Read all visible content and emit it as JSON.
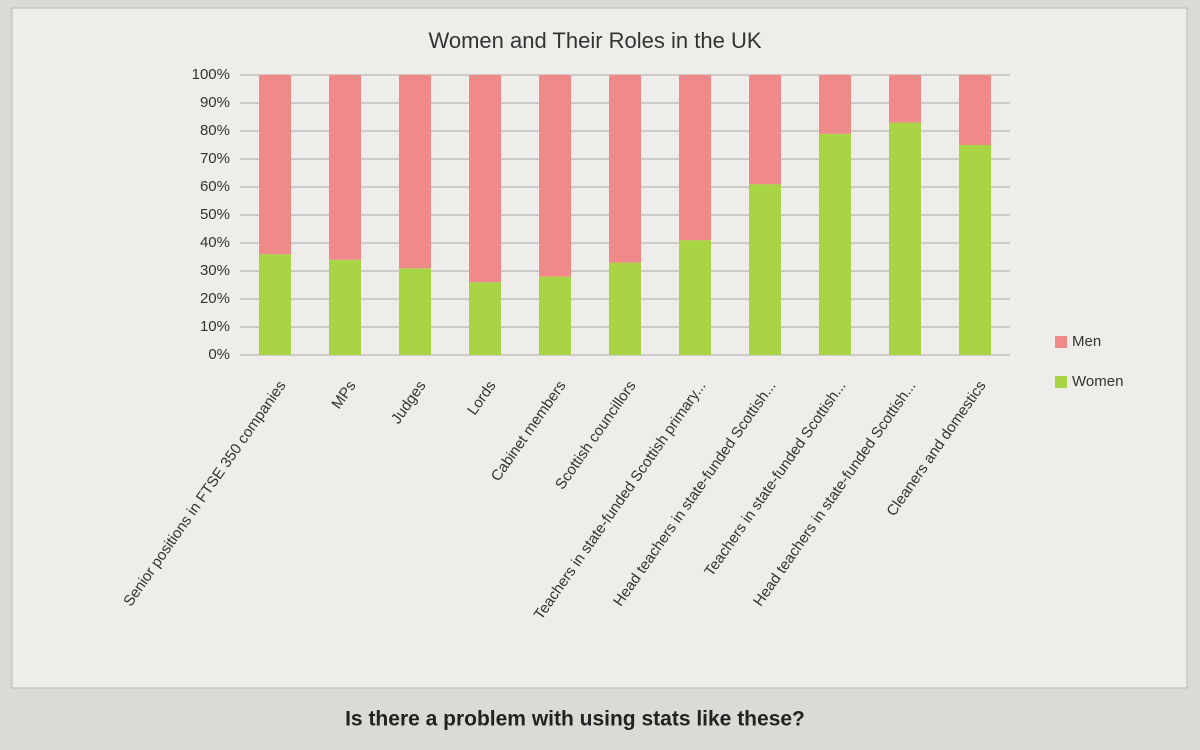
{
  "chart_data": {
    "type": "stacked_bar",
    "title": "Women and Their Roles in the UK",
    "categories": [
      "Senior positions in FTSE 350 companies",
      "MPs",
      "Judges",
      "Lords",
      "Cabinet members",
      "Scottish councillors",
      "Teachers in state-funded Scottish primary...",
      "Head teachers in state-funded Scottish...",
      "Teachers in state-funded Scottish...",
      "Head teachers in state-funded Scottish...",
      "Cleaners and domestics"
    ],
    "series": [
      {
        "name": "Women",
        "color": "#a9d444",
        "values": [
          36,
          34,
          31,
          26,
          28,
          33,
          41,
          61,
          79,
          83,
          75
        ]
      },
      {
        "name": "Men",
        "color": "#f08a8a",
        "values": [
          64,
          66,
          69,
          74,
          72,
          67,
          59,
          39,
          21,
          17,
          25
        ]
      }
    ],
    "ylim": [
      0,
      100
    ],
    "yticks": [
      {
        "value": 0,
        "label": "0%"
      },
      {
        "value": 10,
        "label": "10%"
      },
      {
        "value": 20,
        "label": "20%"
      },
      {
        "value": 30,
        "label": "30%"
      },
      {
        "value": 40,
        "label": "40%"
      },
      {
        "value": 50,
        "label": "50%"
      },
      {
        "value": 60,
        "label": "60%"
      },
      {
        "value": 70,
        "label": "70%"
      },
      {
        "value": 80,
        "label": "80%"
      },
      {
        "value": 90,
        "label": "90%"
      },
      {
        "value": 100,
        "label": "100%"
      }
    ],
    "grid": true,
    "legend": "right"
  },
  "question": "Is there a problem with using stats like these?"
}
